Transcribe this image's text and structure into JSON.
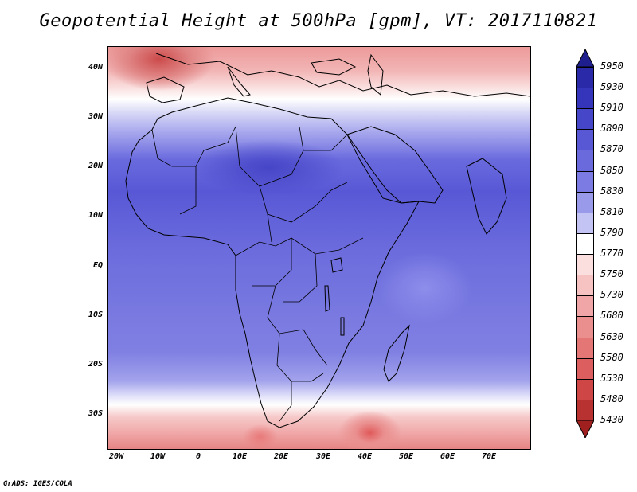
{
  "title": "Geopotential Height at 500hPa [gpm], VT: 2017110821",
  "credit": "GrADS: IGES/COLA",
  "map": {
    "lat_labels": [
      "40N",
      "30N",
      "20N",
      "10N",
      "EQ",
      "10S",
      "20S",
      "30S"
    ],
    "lon_labels": [
      "20W",
      "10W",
      "0",
      "10E",
      "20E",
      "30E",
      "40E",
      "50E",
      "60E",
      "70E"
    ],
    "features": [
      "coastline",
      "country-borders"
    ]
  },
  "colorbar": {
    "labels": [
      "5950",
      "5930",
      "5910",
      "5890",
      "5870",
      "5850",
      "5830",
      "5810",
      "5790",
      "5770",
      "5750",
      "5730",
      "5680",
      "5630",
      "5580",
      "5530",
      "5480",
      "5430"
    ],
    "colors": [
      "#1e1e8f",
      "#2a2aa8",
      "#3535bb",
      "#4646c8",
      "#5858d4",
      "#6a6adc",
      "#7b7be3",
      "#9a9aea",
      "#c4c4f4",
      "#ffffff",
      "#fbdede",
      "#f6c2c2",
      "#f0a6a6",
      "#ea8e8e",
      "#e47676",
      "#dc5e5e",
      "#cf4646",
      "#b83232",
      "#a02020"
    ]
  }
}
